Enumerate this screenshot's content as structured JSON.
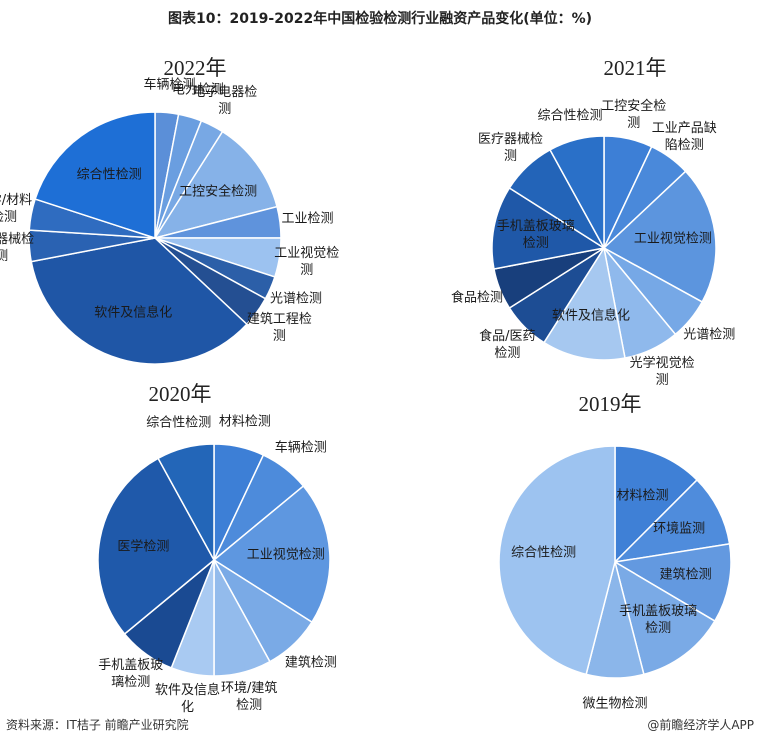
{
  "title": "图表10：2019-2022年中国检验检测行业融资产品变化(单位：%)",
  "source": "资料来源：IT桔子 前瞻产业研究院",
  "credit": "@前瞻经济学人APP",
  "chart_data": [
    {
      "type": "pie",
      "title": "2022年",
      "categories": [
        "车辆检测",
        "电力检测",
        "电子电器检测",
        "工控安全检测",
        "工业检测",
        "工业视觉检测",
        "光谱检测",
        "建筑工程检测",
        "软件及信息化",
        "医疗器械检测",
        "医学/材料检测",
        "综合性检测"
      ],
      "values": [
        3,
        3,
        3,
        12,
        4,
        5,
        3,
        4,
        35,
        4,
        4,
        20
      ],
      "colors": [
        "#5b8fd8",
        "#6a9ee0",
        "#78a8e4",
        "#86b2e8",
        "#5f93dc",
        "#9cc2f0",
        "#2c5fa8",
        "#244f92",
        "#1f56a6",
        "#2a62b2",
        "#2f6cc0",
        "#1e6fd6"
      ]
    },
    {
      "type": "pie",
      "title": "2021年",
      "categories": [
        "工控安全检测",
        "工业产品缺陷检测",
        "工业视觉检测",
        "光谱检测",
        "光学视觉检测",
        "软件及信息化",
        "食品/医药检测",
        "食品检测",
        "手机盖板玻璃检测",
        "医疗器械检测",
        "综合性检测"
      ],
      "values": [
        7,
        6,
        20,
        6,
        8,
        12,
        7,
        6,
        12,
        8,
        8
      ],
      "colors": [
        "#3d7fd6",
        "#4a89da",
        "#5c95de",
        "#76a8e6",
        "#8fb9ec",
        "#a6c8f0",
        "#1d4d94",
        "#183f7c",
        "#1f58a8",
        "#2364b8",
        "#2a70c8"
      ]
    },
    {
      "type": "pie",
      "title": "2020年",
      "categories": [
        "材料检测",
        "车辆检测",
        "工业视觉检测",
        "建筑检测",
        "环境/建筑检测",
        "软件及信息化",
        "手机盖板玻璃检测",
        "医学检测",
        "综合性检测"
      ],
      "values": [
        7,
        7,
        20,
        8,
        8,
        6,
        8,
        28,
        8
      ],
      "colors": [
        "#3d7fd6",
        "#4d8bdb",
        "#5e97e0",
        "#7aaae6",
        "#93bbec",
        "#a9caf2",
        "#1a4a92",
        "#1f59aa",
        "#2366b8"
      ]
    },
    {
      "type": "pie",
      "title": "2019年",
      "categories": [
        "材料检测",
        "环境监测",
        "建筑检测",
        "手机盖板玻璃检测",
        "微生物检测",
        "综合性检测"
      ],
      "values": [
        12.5,
        10,
        11,
        12.5,
        8,
        46
      ],
      "colors": [
        "#3f80d6",
        "#4f8cdc",
        "#6399e0",
        "#7aaae6",
        "#8bb6ea",
        "#9dc3f0"
      ]
    }
  ]
}
